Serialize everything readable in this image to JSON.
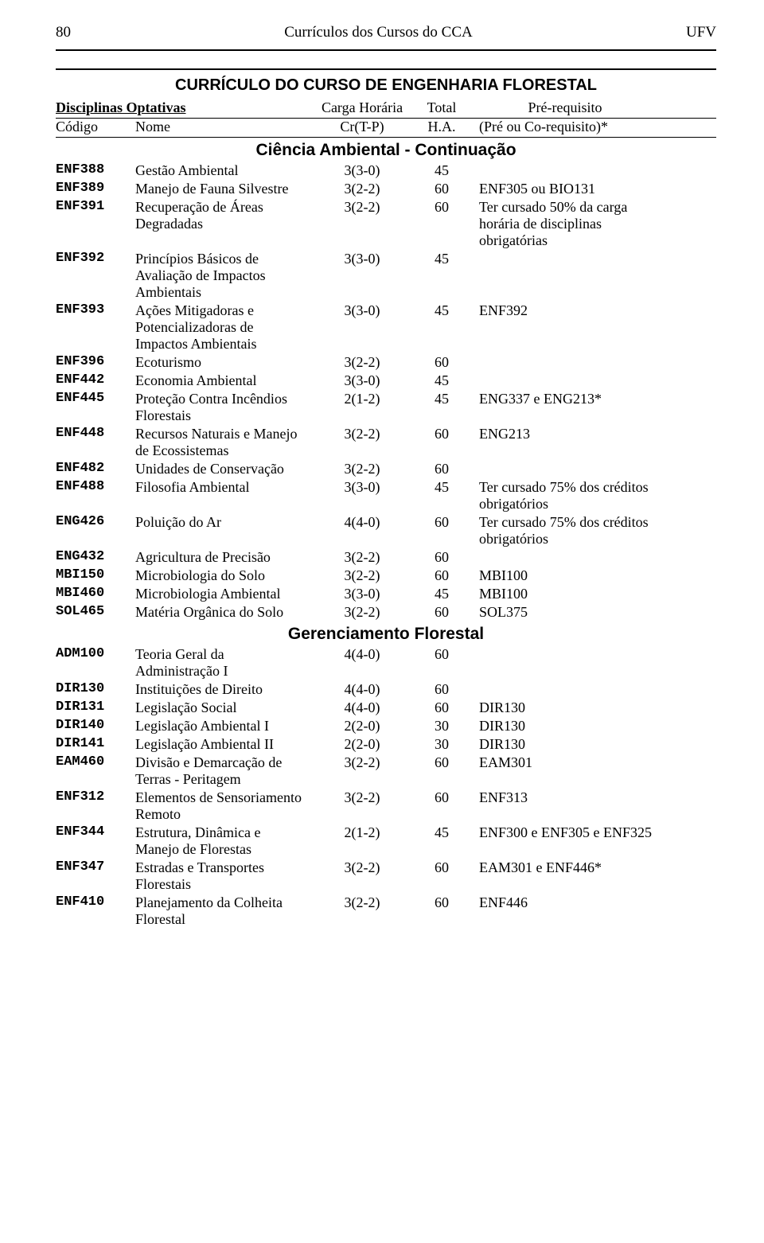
{
  "page_number": "80",
  "header_center": "Currículos dos Cursos do CCA",
  "header_right": "UFV",
  "course_title": "CURRÍCULO DO CURSO DE ENGENHARIA FLORESTAL",
  "columns": {
    "disciplinas": "Disciplinas Optativas",
    "codigo": "Código",
    "nome": "Nome",
    "carga": "Carga Horária",
    "cr": "Cr(T-P)",
    "total": "Total",
    "prereq": "Pré-requisito",
    "ha": "H.A.",
    "prereq_note": "(Pré ou Co-requisito)*"
  },
  "sections": [
    {
      "title": "Ciência Ambiental - Continuação",
      "rows": [
        {
          "code": "ENF388",
          "name": "Gestão Ambiental",
          "cr": "3(3-0)",
          "total": "45",
          "prereq": ""
        },
        {
          "code": "ENF389",
          "name": "Manejo de Fauna Silvestre",
          "cr": "3(2-2)",
          "total": "60",
          "prereq": "ENF305 ou BIO131"
        },
        {
          "code": "ENF391",
          "name": "Recuperação de Áreas Degradadas",
          "cr": "3(2-2)",
          "total": "60",
          "prereq": "Ter cursado 50% da carga horária de disciplinas obrigatórias"
        },
        {
          "code": "ENF392",
          "name": "Princípios Básicos de Avaliação de Impactos Ambientais",
          "cr": "3(3-0)",
          "total": "45",
          "prereq": ""
        },
        {
          "code": "ENF393",
          "name": "Ações Mitigadoras e Potencializadoras de Impactos Ambientais",
          "cr": "3(3-0)",
          "total": "45",
          "prereq": "ENF392"
        },
        {
          "code": "ENF396",
          "name": "Ecoturismo",
          "cr": "3(2-2)",
          "total": "60",
          "prereq": ""
        },
        {
          "code": "ENF442",
          "name": "Economia Ambiental",
          "cr": "3(3-0)",
          "total": "45",
          "prereq": ""
        },
        {
          "code": "ENF445",
          "name": "Proteção Contra Incêndios Florestais",
          "cr": "2(1-2)",
          "total": "45",
          "prereq": "ENG337 e ENG213*"
        },
        {
          "code": "ENF448",
          "name": "Recursos Naturais e Manejo de Ecossistemas",
          "cr": "3(2-2)",
          "total": "60",
          "prereq": "ENG213"
        },
        {
          "code": "ENF482",
          "name": "Unidades de Conservação",
          "cr": "3(2-2)",
          "total": "60",
          "prereq": ""
        },
        {
          "code": "ENF488",
          "name": "Filosofia Ambiental",
          "cr": "3(3-0)",
          "total": "45",
          "prereq": "Ter cursado 75% dos créditos obrigatórios"
        },
        {
          "code": "ENG426",
          "name": "Poluição do Ar",
          "cr": "4(4-0)",
          "total": "60",
          "prereq": "Ter cursado 75% dos créditos obrigatórios"
        },
        {
          "code": "ENG432",
          "name": "Agricultura de Precisão",
          "cr": "3(2-2)",
          "total": "60",
          "prereq": ""
        },
        {
          "code": "MBI150",
          "name": "Microbiologia do Solo",
          "cr": "3(2-2)",
          "total": "60",
          "prereq": "MBI100"
        },
        {
          "code": "MBI460",
          "name": "Microbiologia Ambiental",
          "cr": "3(3-0)",
          "total": "45",
          "prereq": "MBI100"
        },
        {
          "code": "SOL465",
          "name": "Matéria Orgânica do Solo",
          "cr": "3(2-2)",
          "total": "60",
          "prereq": "SOL375"
        }
      ]
    },
    {
      "title": "Gerenciamento Florestal",
      "rows": [
        {
          "code": "ADM100",
          "name": "Teoria Geral da Administração I",
          "cr": "4(4-0)",
          "total": "60",
          "prereq": ""
        },
        {
          "code": "DIR130",
          "name": "Instituições de Direito",
          "cr": "4(4-0)",
          "total": "60",
          "prereq": ""
        },
        {
          "code": "DIR131",
          "name": "Legislação Social",
          "cr": "4(4-0)",
          "total": "60",
          "prereq": "DIR130"
        },
        {
          "code": "DIR140",
          "name": "Legislação Ambiental I",
          "cr": "2(2-0)",
          "total": "30",
          "prereq": "DIR130"
        },
        {
          "code": "DIR141",
          "name": "Legislação Ambiental II",
          "cr": "2(2-0)",
          "total": "30",
          "prereq": "DIR130"
        },
        {
          "code": "EAM460",
          "name": "Divisão e Demarcação de Terras - Peritagem",
          "cr": "3(2-2)",
          "total": "60",
          "prereq": "EAM301"
        },
        {
          "code": "ENF312",
          "name": "Elementos de Sensoriamento Remoto",
          "cr": "3(2-2)",
          "total": "60",
          "prereq": "ENF313"
        },
        {
          "code": "ENF344",
          "name": "Estrutura, Dinâmica e Manejo de Florestas",
          "cr": "2(1-2)",
          "total": "45",
          "prereq": "ENF300 e ENF305 e ENF325"
        },
        {
          "code": "ENF347",
          "name": "Estradas e Transportes Florestais",
          "cr": "3(2-2)",
          "total": "60",
          "prereq": "EAM301 e ENF446*"
        },
        {
          "code": "ENF410",
          "name": "Planejamento da Colheita Florestal",
          "cr": "3(2-2)",
          "total": "60",
          "prereq": "ENF446"
        }
      ]
    }
  ]
}
